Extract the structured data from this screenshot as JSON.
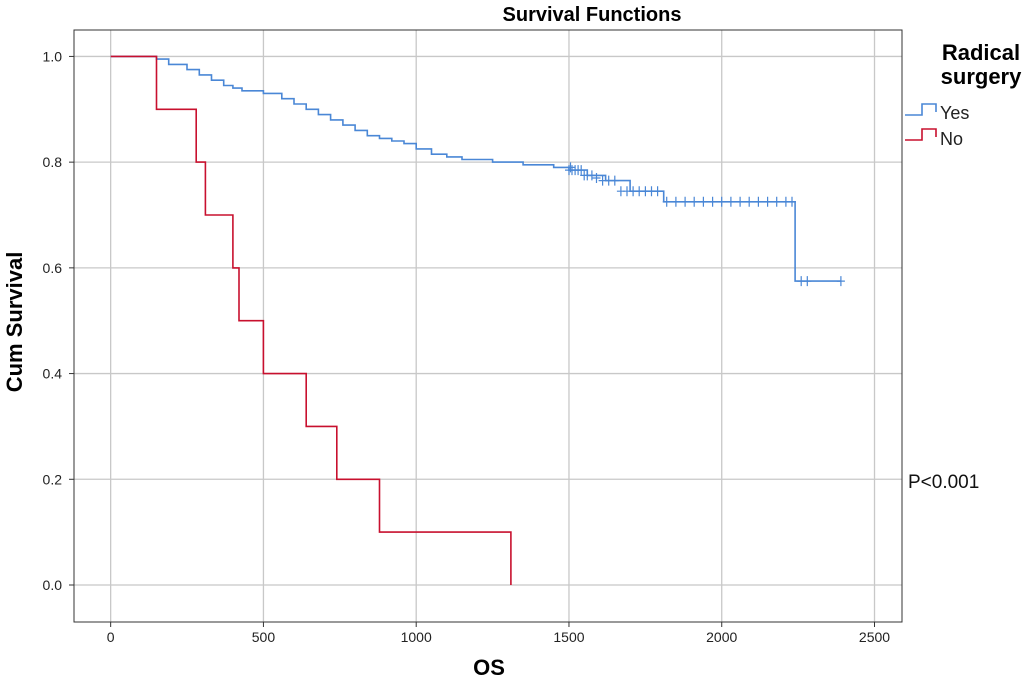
{
  "chart_data": {
    "type": "line",
    "title": "Survival Functions",
    "xlabel": "OS",
    "ylabel": "Cum Survival",
    "xlim": [
      -120,
      2590
    ],
    "ylim": [
      -0.07,
      1.05
    ],
    "xticks": [
      0,
      500,
      1000,
      1500,
      2000,
      2500
    ],
    "xtick_labels": [
      "0",
      "500",
      "1000",
      "1500",
      "2000",
      "2500"
    ],
    "yticks": [
      0.0,
      0.2,
      0.4,
      0.6,
      0.8,
      1.0
    ],
    "ytick_labels": [
      "0.0",
      "0.2",
      "0.4",
      "0.6",
      "0.8",
      "1.0"
    ],
    "grid": true,
    "step": true,
    "legend": {
      "title_lines": [
        "Radical",
        "surgery"
      ],
      "placement": "top-right outside"
    },
    "annotation": "P<0.001",
    "series": [
      {
        "name": "Yes",
        "color": "#4a87d6",
        "x": [
          0,
          150,
          190,
          250,
          290,
          330,
          370,
          400,
          430,
          500,
          560,
          600,
          640,
          680,
          720,
          760,
          800,
          840,
          880,
          920,
          960,
          1000,
          1050,
          1100,
          1150,
          1250,
          1350,
          1450,
          1500,
          1560,
          1620,
          1700,
          1810,
          2240,
          2390
        ],
        "y": [
          1.0,
          0.995,
          0.985,
          0.975,
          0.965,
          0.955,
          0.945,
          0.94,
          0.935,
          0.93,
          0.92,
          0.91,
          0.9,
          0.89,
          0.88,
          0.87,
          0.86,
          0.85,
          0.845,
          0.84,
          0.835,
          0.825,
          0.815,
          0.81,
          0.805,
          0.8,
          0.795,
          0.79,
          0.785,
          0.775,
          0.765,
          0.745,
          0.725,
          0.575,
          0.575
        ],
        "censored_x": [
          1500,
          1505,
          1510,
          1520,
          1530,
          1540,
          1550,
          1560,
          1575,
          1590,
          1610,
          1630,
          1650,
          1670,
          1690,
          1710,
          1730,
          1750,
          1770,
          1790,
          1820,
          1850,
          1880,
          1910,
          1940,
          1970,
          2000,
          2030,
          2060,
          2090,
          2120,
          2150,
          2180,
          2210,
          2230,
          2260,
          2280,
          2390
        ],
        "censored_y": [
          0.785,
          0.79,
          0.785,
          0.785,
          0.785,
          0.785,
          0.775,
          0.775,
          0.775,
          0.77,
          0.765,
          0.765,
          0.765,
          0.745,
          0.745,
          0.745,
          0.745,
          0.745,
          0.745,
          0.745,
          0.725,
          0.725,
          0.725,
          0.725,
          0.725,
          0.725,
          0.725,
          0.725,
          0.725,
          0.725,
          0.725,
          0.725,
          0.725,
          0.725,
          0.725,
          0.575,
          0.575,
          0.575
        ]
      },
      {
        "name": "No",
        "color": "#c8102e",
        "x": [
          0,
          150,
          280,
          310,
          400,
          420,
          500,
          640,
          740,
          880,
          1310,
          1310
        ],
        "y": [
          1.0,
          0.9,
          0.8,
          0.7,
          0.6,
          0.5,
          0.4,
          0.3,
          0.2,
          0.1,
          0.1,
          0.0
        ]
      }
    ]
  }
}
